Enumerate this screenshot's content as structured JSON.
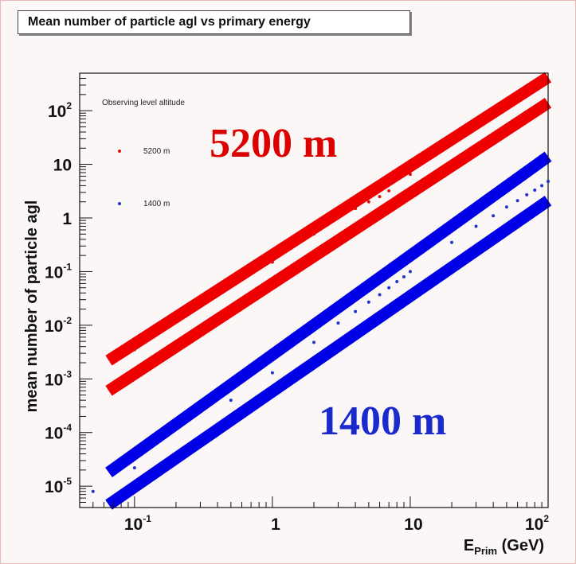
{
  "chart_data": {
    "type": "scatter",
    "title": "Mean number of particle agl vs primary energy",
    "xlabel": "E_Prim (GeV)",
    "xlabel_main": "E",
    "xlabel_sub": "Prim",
    "xlabel_unit": " (GeV)",
    "ylabel": "mean number of particle agl",
    "x_scale": "log",
    "y_scale": "log",
    "xlim": [
      0.04,
      100
    ],
    "ylim": [
      4e-06,
      500
    ],
    "x_ticks": [
      {
        "value": 0.1,
        "base": "10",
        "exp": "-1"
      },
      {
        "value": 1,
        "base": "1",
        "exp": ""
      },
      {
        "value": 10,
        "base": "10",
        "exp": ""
      },
      {
        "value": 100,
        "base": "10",
        "exp": "2"
      }
    ],
    "y_ticks": [
      {
        "value": 1e-05,
        "base": "10",
        "exp": "-5"
      },
      {
        "value": 0.0001,
        "base": "10",
        "exp": "-4"
      },
      {
        "value": 0.001,
        "base": "10",
        "exp": "-3"
      },
      {
        "value": 0.01,
        "base": "10",
        "exp": "-2"
      },
      {
        "value": 0.1,
        "base": "10",
        "exp": "-1"
      },
      {
        "value": 1,
        "base": "1",
        "exp": ""
      },
      {
        "value": 10,
        "base": "10",
        "exp": ""
      },
      {
        "value": 100,
        "base": "10",
        "exp": "2"
      }
    ],
    "legend": {
      "title": "Observing level altitude",
      "position": "top-left",
      "entries": [
        "5200 m",
        "1400 m"
      ]
    },
    "annotations": [
      {
        "text": "5200 m",
        "color": "#dd0000"
      },
      {
        "text": "1400 m",
        "color": "#1a2acc"
      }
    ],
    "series": [
      {
        "name": "5200 m",
        "color": "#dd1111",
        "points": [
          [
            0.1,
            0.0035
          ],
          [
            1,
            0.15
          ],
          [
            2,
            0.5
          ],
          [
            3,
            1.0
          ],
          [
            4,
            1.5
          ],
          [
            5,
            2.0
          ],
          [
            6,
            2.5
          ],
          [
            7,
            3.2
          ],
          [
            10,
            6.5
          ]
        ]
      },
      {
        "name": "1400 m",
        "color": "#2233cc",
        "points": [
          [
            0.05,
            8e-06
          ],
          [
            0.1,
            2.2e-05
          ],
          [
            0.5,
            0.0004
          ],
          [
            1,
            0.0013
          ],
          [
            2,
            0.0048
          ],
          [
            3,
            0.011
          ],
          [
            4,
            0.018
          ],
          [
            5,
            0.027
          ],
          [
            6,
            0.037
          ],
          [
            7,
            0.05
          ],
          [
            8,
            0.065
          ],
          [
            9,
            0.08
          ],
          [
            10,
            0.1
          ],
          [
            20,
            0.35
          ],
          [
            30,
            0.7
          ],
          [
            40,
            1.1
          ],
          [
            50,
            1.6
          ],
          [
            60,
            2.1
          ],
          [
            70,
            2.7
          ],
          [
            80,
            3.3
          ],
          [
            90,
            4.0
          ],
          [
            100,
            4.8
          ]
        ]
      }
    ],
    "bands": [
      {
        "color": "#ee0000",
        "from": [
          0.065,
          0.0022
        ],
        "to": [
          100,
          420
        ]
      },
      {
        "color": "#ee0000",
        "from": [
          0.065,
          0.0006
        ],
        "to": [
          100,
          140
        ]
      },
      {
        "color": "#0000e6",
        "from": [
          0.065,
          1.8e-05
        ],
        "to": [
          100,
          14
        ]
      },
      {
        "color": "#0000e6",
        "from": [
          0.065,
          4.5e-06
        ],
        "to": [
          100,
          2.1
        ]
      }
    ],
    "grid": false
  }
}
